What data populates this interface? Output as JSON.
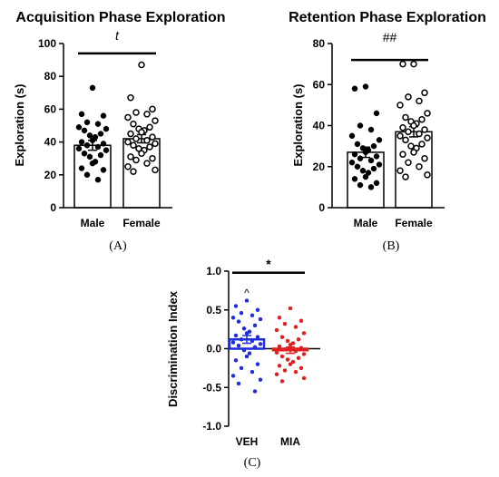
{
  "chart_data": [
    {
      "type": "bar",
      "panel_label": "(A)",
      "title": "Acquisition Phase Exploration",
      "ylabel": "Exploration (s)",
      "xlabel": "",
      "ylim": [
        0,
        100
      ],
      "yticks": [
        "0",
        "20",
        "40",
        "60",
        "80",
        "100"
      ],
      "ytick_values": [
        0,
        20,
        40,
        60,
        80,
        100
      ],
      "categories": [
        "Male",
        "Female"
      ],
      "means": [
        38,
        42
      ],
      "sems": [
        3,
        2.5
      ],
      "point_styles": [
        "filled",
        "open"
      ],
      "significance": {
        "label": "t",
        "italic": true,
        "between": [
          0,
          1
        ],
        "y": 94
      },
      "points": [
        [
          73,
          57,
          56,
          52,
          51,
          49,
          48,
          47,
          45,
          44,
          43,
          41,
          40,
          39,
          38,
          37,
          36,
          35,
          33,
          32,
          31,
          28,
          27,
          24,
          23,
          20,
          17
        ],
        [
          87,
          67,
          60,
          58,
          57,
          55,
          53,
          51,
          49,
          48,
          47,
          46,
          45,
          43,
          42,
          41,
          40,
          39,
          38,
          37,
          36,
          35,
          33,
          31,
          30,
          29,
          27,
          25,
          23,
          22
        ]
      ]
    },
    {
      "type": "bar",
      "panel_label": "(B)",
      "title": "Retention Phase Exploration",
      "ylabel": "Exploration (s)",
      "xlabel": "",
      "ylim": [
        0,
        80
      ],
      "yticks": [
        "0",
        "20",
        "40",
        "60",
        "80"
      ],
      "ytick_values": [
        0,
        20,
        40,
        60,
        80
      ],
      "categories": [
        "Male",
        "Female"
      ],
      "means": [
        27,
        37
      ],
      "sems": [
        2.5,
        2.5
      ],
      "point_styles": [
        "filled",
        "open"
      ],
      "significance": {
        "label": "##",
        "italic": false,
        "between": [
          0,
          1
        ],
        "y": 72
      },
      "points": [
        [
          59,
          58,
          46,
          40,
          38,
          35,
          33,
          31,
          30,
          29,
          28,
          27,
          26,
          25,
          24,
          23,
          22,
          21,
          20,
          19,
          18,
          17,
          15,
          14,
          12,
          11,
          10
        ],
        [
          70,
          70,
          56,
          54,
          52,
          50,
          46,
          44,
          43,
          42,
          41,
          40,
          39,
          38,
          37,
          36,
          35,
          34,
          33,
          31,
          30,
          29,
          27,
          26,
          24,
          22,
          20,
          18,
          16,
          15
        ]
      ]
    },
    {
      "type": "bar",
      "panel_label": "(C)",
      "title": "",
      "ylabel": "Discrimination Index",
      "xlabel": "",
      "ylim": [
        -1.0,
        1.0
      ],
      "yticks": [
        "-1.0",
        "-0.5",
        "0.0",
        "0.5",
        "1.0"
      ],
      "ytick_values": [
        -1.0,
        -0.5,
        0.0,
        0.5,
        1.0
      ],
      "categories": [
        "VEH",
        "MIA"
      ],
      "means": [
        0.12,
        -0.02
      ],
      "sems": [
        0.05,
        0.04
      ],
      "colors": [
        "#1f2de0",
        "#e02020"
      ],
      "point_styles": [
        "filled",
        "filled"
      ],
      "significance": {
        "label": "*",
        "italic": false,
        "between": [
          0,
          1
        ],
        "y": 0.98
      },
      "annotation": {
        "label": "^",
        "category_index": 0,
        "y": 0.74
      },
      "points": [
        [
          0.62,
          0.55,
          0.5,
          0.46,
          0.43,
          0.4,
          0.38,
          0.35,
          0.3,
          0.26,
          0.22,
          0.2,
          0.17,
          0.15,
          0.12,
          0.1,
          0.08,
          0.06,
          0.04,
          0.02,
          -0.02,
          -0.06,
          -0.1,
          -0.15,
          -0.2,
          -0.25,
          -0.3,
          -0.35,
          -0.4,
          -0.45,
          -0.55
        ],
        [
          0.52,
          0.4,
          0.36,
          0.32,
          0.28,
          0.24,
          0.2,
          0.15,
          0.12,
          0.1,
          0.07,
          0.05,
          0.03,
          0.01,
          -0.01,
          -0.03,
          -0.05,
          -0.07,
          -0.1,
          -0.12,
          -0.14,
          -0.17,
          -0.2,
          -0.22,
          -0.25,
          -0.28,
          -0.3,
          -0.33,
          -0.38,
          -0.42
        ]
      ]
    }
  ]
}
